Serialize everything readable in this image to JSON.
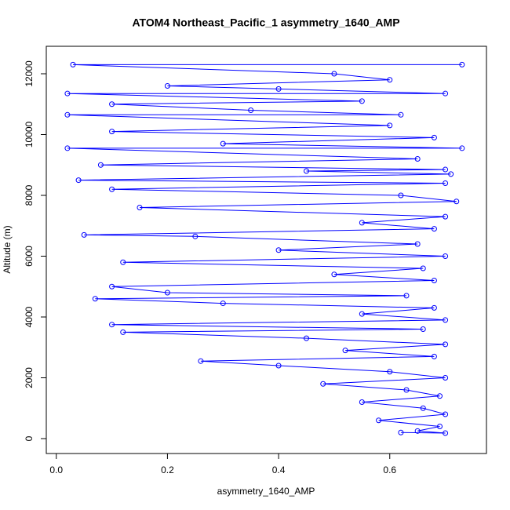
{
  "chart_data": {
    "type": "line",
    "title": "ATOM4 Northeast_Pacific_1 asymmetry_1640_AMP",
    "x_label": "asymmetry_1640_AMP",
    "y_label": "Altitude (m)",
    "color": "#0000ff",
    "markers": true,
    "x": [
      0.62,
      0.7,
      0.65,
      0.69,
      0.58,
      0.7,
      0.66,
      0.55,
      0.69,
      0.63,
      0.48,
      0.7,
      0.6,
      0.4,
      0.26,
      0.68,
      0.52,
      0.7,
      0.45,
      0.12,
      0.66,
      0.1,
      0.7,
      0.55,
      0.68,
      0.3,
      0.07,
      0.63,
      0.2,
      0.1,
      0.68,
      0.5,
      0.66,
      0.12,
      0.7,
      0.4,
      0.65,
      0.25,
      0.05,
      0.68,
      0.55,
      0.7,
      0.15,
      0.72,
      0.62,
      0.1,
      0.7,
      0.04,
      0.71,
      0.45,
      0.7,
      0.08,
      0.65,
      0.02,
      0.73,
      0.3,
      0.68,
      0.1,
      0.6,
      0.02,
      0.62,
      0.35,
      0.1,
      0.55,
      0.02,
      0.7,
      0.4,
      0.2,
      0.6,
      0.5,
      0.03,
      0.73
    ],
    "values": [
      200,
      180,
      250,
      400,
      600,
      800,
      1000,
      1200,
      1400,
      1600,
      1800,
      2000,
      2200,
      2400,
      2550,
      2700,
      2900,
      3100,
      3300,
      3500,
      3600,
      3750,
      3900,
      4100,
      4300,
      4450,
      4600,
      4700,
      4800,
      5000,
      5200,
      5400,
      5600,
      5800,
      6000,
      6200,
      6400,
      6650,
      6700,
      6900,
      7100,
      7300,
      7600,
      7800,
      8000,
      8200,
      8400,
      8500,
      8700,
      8800,
      8850,
      9000,
      9200,
      9550,
      9550,
      9700,
      9900,
      10100,
      10300,
      10650,
      10650,
      10800,
      11000,
      11100,
      11350,
      11350,
      11500,
      11600,
      11800,
      12000,
      12300,
      12300
    ],
    "xlim": [
      -0.018,
      0.774
    ],
    "ylim": [
      -490,
      12903
    ],
    "xticks": [
      {
        "value": 0,
        "label": "0.0"
      },
      {
        "value": 0.2,
        "label": "0.2"
      },
      {
        "value": 0.4,
        "label": "0.4"
      },
      {
        "value": 0.6,
        "label": "0.6"
      }
    ],
    "yticks": [
      0,
      2000,
      4000,
      6000,
      8000,
      10000,
      12000
    ]
  }
}
